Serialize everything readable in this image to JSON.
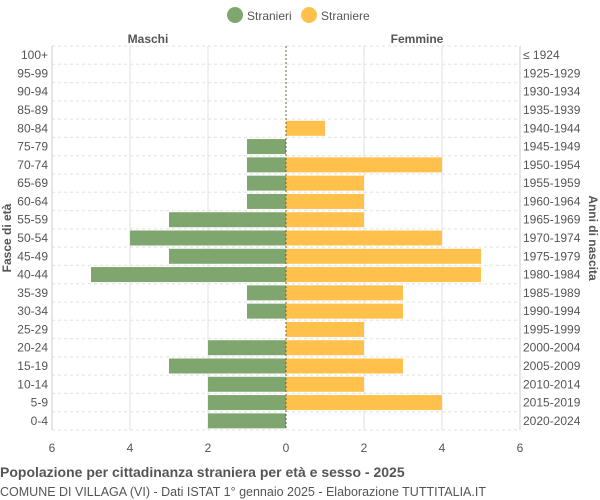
{
  "chart_data": {
    "type": "bar",
    "orientation": "horizontal-pyramid",
    "title": "Popolazione per cittadinanza straniera per età e sesso - 2025",
    "subtitle": "COMUNE DI VILLAGA (VI) - Dati ISTAT 1° gennaio 2025 - Elaborazione TUTTITALIA.IT",
    "left_header": "Maschi",
    "right_header": "Femmine",
    "ylabel_left": "Fasce di età",
    "ylabel_right": "Anni di nascita",
    "xlim": [
      -6,
      6
    ],
    "xticks": [
      "6",
      "4",
      "2",
      "0",
      "2",
      "4",
      "6"
    ],
    "grid": true,
    "legend_position": "top",
    "categories": [
      "100+",
      "95-99",
      "90-94",
      "85-89",
      "80-84",
      "75-79",
      "70-74",
      "65-69",
      "60-64",
      "55-59",
      "50-54",
      "45-49",
      "40-44",
      "35-39",
      "30-34",
      "25-29",
      "20-24",
      "15-19",
      "10-14",
      "5-9",
      "0-4"
    ],
    "birth_years": [
      "≤ 1924",
      "1925-1929",
      "1930-1934",
      "1935-1939",
      "1940-1944",
      "1945-1949",
      "1950-1954",
      "1955-1959",
      "1960-1964",
      "1965-1969",
      "1970-1974",
      "1975-1979",
      "1980-1984",
      "1985-1989",
      "1990-1994",
      "1995-1999",
      "2000-2004",
      "2005-2009",
      "2010-2014",
      "2015-2019",
      "2020-2024"
    ],
    "series": [
      {
        "name": "Stranieri",
        "color": "#7ea66e",
        "values": [
          0,
          0,
          0,
          0,
          0,
          1,
          1,
          1,
          1,
          3,
          4,
          3,
          5,
          1,
          1,
          0,
          2,
          3,
          2,
          2,
          2
        ]
      },
      {
        "name": "Straniere",
        "color": "#ffc04c",
        "values": [
          0,
          0,
          0,
          0,
          1,
          0,
          4,
          2,
          2,
          2,
          4,
          5,
          5,
          3,
          3,
          2,
          2,
          3,
          2,
          4,
          0
        ]
      }
    ]
  }
}
